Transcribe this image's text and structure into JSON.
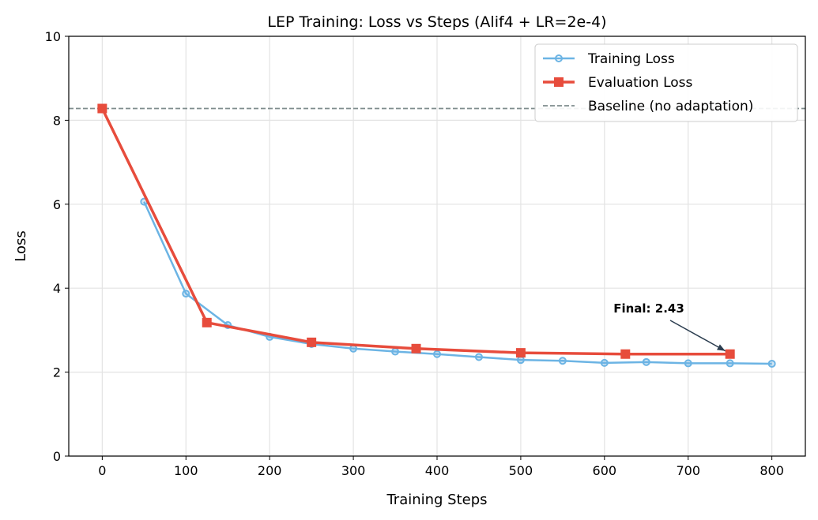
{
  "chart_data": {
    "type": "line",
    "title": "LEP Training: Loss vs Steps (Alif4 + LR=2e-4)",
    "xlabel": "Training Steps",
    "ylabel": "Loss",
    "xlim": [
      -40,
      840
    ],
    "ylim": [
      0,
      10
    ],
    "xticks": [
      0,
      100,
      200,
      300,
      400,
      500,
      600,
      700,
      800
    ],
    "yticks": [
      0,
      2,
      4,
      6,
      8,
      10
    ],
    "grid": true,
    "legend_position": "top-right",
    "series": [
      {
        "name": "Training Loss",
        "color": "#6cb4e4",
        "marker": "circle",
        "x": [
          50,
          100,
          150,
          200,
          250,
          300,
          350,
          400,
          450,
          500,
          550,
          600,
          650,
          700,
          750,
          800
        ],
        "y": [
          6.06,
          3.87,
          3.12,
          2.84,
          2.67,
          2.56,
          2.49,
          2.43,
          2.36,
          2.29,
          2.27,
          2.22,
          2.24,
          2.21,
          2.21,
          2.2
        ]
      },
      {
        "name": "Evaluation Loss",
        "color": "#e74c3c",
        "marker": "square",
        "x": [
          0,
          125,
          250,
          375,
          500,
          625,
          750
        ],
        "y": [
          8.28,
          3.18,
          2.71,
          2.56,
          2.46,
          2.43,
          2.43
        ]
      }
    ],
    "baseline": {
      "name": "Baseline (no adaptation)",
      "y": 8.28,
      "color": "#7f8c8d"
    },
    "annotation": {
      "text": "Final: 2.43",
      "x": 750,
      "y": 2.43
    }
  }
}
